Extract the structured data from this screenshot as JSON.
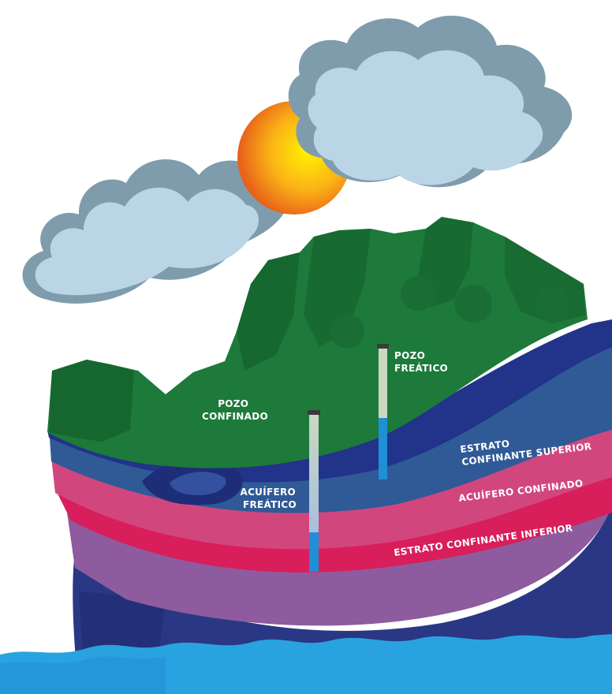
{
  "labels": {
    "pozo_freatico": [
      "POZO",
      "FREÁTICO"
    ],
    "pozo_confinado": [
      "POZO",
      "CONFINADO"
    ],
    "acuifero_freatico": [
      "ACUÍFERO",
      "FREÁTICO"
    ],
    "estrato_confinante_superior": [
      "ESTRATO",
      "CONFINANTE SUPERIOR"
    ],
    "acuifero_confinado": "ACUÍFERO CONFINADO",
    "estrato_confinante_inferior": "ESTRATO CONFINANTE INFERIOR"
  },
  "colors": {
    "cloud_top": "#b9d5e6",
    "cloud_side": "#7e9aaa",
    "sun_outer": "#e8641a",
    "sun_inner": "#fff000",
    "vegetation": "#1d7a3a",
    "vegetation_dark": "#13602b",
    "water_table_band": "#24388c",
    "unconfined_aquifer": "#2f5a96",
    "upper_confining_layer": "#d2467e",
    "confined_aquifer": "#d81e5b",
    "lower_confining_layer": "#8e5b9e",
    "base": "#2a3785",
    "water": "#29a3e0",
    "well_water": "#1f8fd6"
  }
}
